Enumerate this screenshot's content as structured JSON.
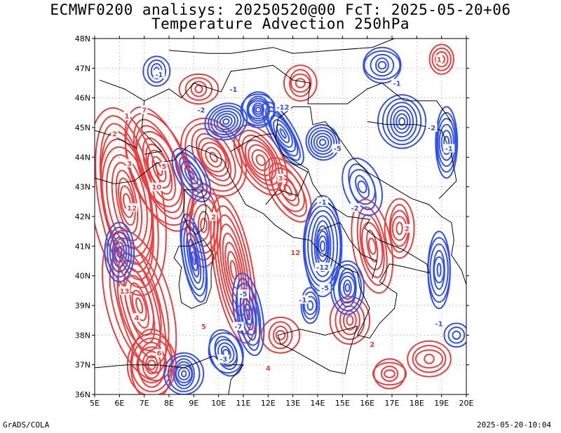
{
  "title_line1": "ECMWF0200 analisys: 20250520@00 FcT: 2025-05-20+06",
  "title_line2": "Temperature Advection 250hPa",
  "footer_left": "GrADS/COLA",
  "footer_right": "2025-05-20-10:04",
  "map": {
    "lon_range": [
      5,
      20
    ],
    "lat_range": [
      36,
      48
    ],
    "lon_labels": [
      "5E",
      "6E",
      "7E",
      "8E",
      "9E",
      "10E",
      "11E",
      "12E",
      "13E",
      "14E",
      "15E",
      "16E",
      "17E",
      "18E",
      "19E",
      "20E"
    ],
    "lat_labels": [
      "36N",
      "37N",
      "38N",
      "39N",
      "40N",
      "41N",
      "42N",
      "43N",
      "44N",
      "45N",
      "46N",
      "47N",
      "48N"
    ],
    "colors": {
      "positive": "#f03c3c",
      "negative": "#3250f0",
      "coast": "#000000",
      "grid": "#a0a0a0"
    },
    "contour_labels": [
      {
        "text": "1",
        "lon": 6.3,
        "lat": 45.4,
        "sign": "pos"
      },
      {
        "text": "2",
        "lon": 5.8,
        "lat": 44.8,
        "sign": "pos"
      },
      {
        "text": "3",
        "lon": 6.4,
        "lat": 43.8,
        "sign": "pos"
      },
      {
        "text": "5",
        "lon": 7.8,
        "lat": 43.7,
        "sign": "pos"
      },
      {
        "text": "10",
        "lon": 7.5,
        "lat": 43.0,
        "sign": "pos"
      },
      {
        "text": "12",
        "lon": 6.5,
        "lat": 42.3,
        "sign": "pos"
      },
      {
        "text": "13",
        "lon": 6.2,
        "lat": 39.5,
        "sign": "pos"
      },
      {
        "text": "4",
        "lon": 6.7,
        "lat": 38.6,
        "sign": "pos"
      },
      {
        "text": "6",
        "lon": 7.6,
        "lat": 37.4,
        "sign": "pos"
      },
      {
        "text": "5",
        "lon": 9.4,
        "lat": 38.3,
        "sign": "pos"
      },
      {
        "text": "7",
        "lon": 7.0,
        "lat": 45.6,
        "sign": "pos"
      },
      {
        "text": "2",
        "lon": 9.8,
        "lat": 42.0,
        "sign": "pos"
      },
      {
        "text": "3",
        "lon": 12.5,
        "lat": 43.3,
        "sign": "pos"
      },
      {
        "text": "12",
        "lon": 13.1,
        "lat": 40.8,
        "sign": "pos"
      },
      {
        "text": "2",
        "lon": 16.2,
        "lat": 37.7,
        "sign": "pos"
      },
      {
        "text": "4",
        "lon": 12.0,
        "lat": 36.9,
        "sign": "pos"
      },
      {
        "text": "2",
        "lon": 17.6,
        "lat": 41.6,
        "sign": "pos"
      },
      {
        "text": "1",
        "lon": 18.9,
        "lat": 47.3,
        "sign": "pos"
      },
      {
        "text": "-1",
        "lon": 7.6,
        "lat": 46.8,
        "sign": "neg"
      },
      {
        "text": "-2",
        "lon": 9.3,
        "lat": 45.6,
        "sign": "neg"
      },
      {
        "text": "-12",
        "lon": 12.6,
        "lat": 45.7,
        "sign": "neg"
      },
      {
        "text": "-5",
        "lon": 14.8,
        "lat": 44.3,
        "sign": "neg"
      },
      {
        "text": "-1",
        "lon": 14.2,
        "lat": 42.5,
        "sign": "neg"
      },
      {
        "text": "-12",
        "lon": 14.2,
        "lat": 40.3,
        "sign": "neg"
      },
      {
        "text": "-5",
        "lon": 14.3,
        "lat": 39.6,
        "sign": "neg"
      },
      {
        "text": "-2",
        "lon": 15.5,
        "lat": 42.3,
        "sign": "neg"
      },
      {
        "text": "-1",
        "lon": 18.9,
        "lat": 38.4,
        "sign": "neg"
      },
      {
        "text": "-2",
        "lon": 18.6,
        "lat": 45.0,
        "sign": "neg"
      },
      {
        "text": "-1",
        "lon": 19.3,
        "lat": 44.3,
        "sign": "neg"
      },
      {
        "text": "-1",
        "lon": 17.2,
        "lat": 46.5,
        "sign": "neg"
      },
      {
        "text": "-3",
        "lon": 10.2,
        "lat": 37.2,
        "sign": "neg"
      },
      {
        "text": "-7",
        "lon": 10.8,
        "lat": 38.3,
        "sign": "neg"
      },
      {
        "text": "-5",
        "lon": 11.0,
        "lat": 39.4,
        "sign": "neg"
      },
      {
        "text": "-1",
        "lon": 13.4,
        "lat": 39.2,
        "sign": "neg"
      },
      {
        "text": "-1",
        "lon": 10.6,
        "lat": 46.3,
        "sign": "neg"
      }
    ]
  }
}
